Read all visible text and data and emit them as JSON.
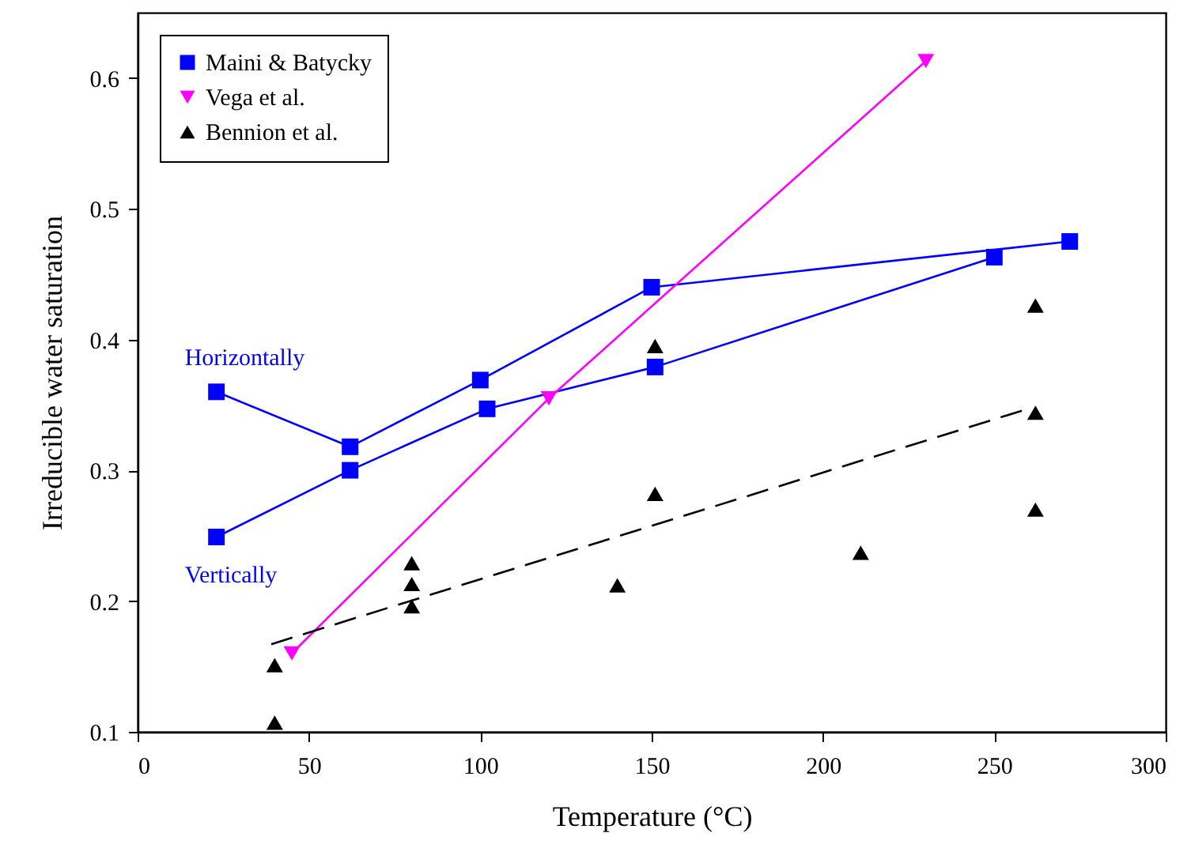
{
  "chart_data": {
    "type": "line",
    "xlabel": "Temperature (°C)",
    "ylabel": "Irreducible water saturation",
    "xlim": [
      0,
      300
    ],
    "xticks": [
      0,
      50,
      100,
      150,
      200,
      250,
      300
    ],
    "ylim": [
      0.1,
      0.65
    ],
    "yticks": [
      0.1,
      0.2,
      0.3,
      0.4,
      0.5,
      0.6
    ],
    "grid": false,
    "legend": "top left",
    "line_style": "solid",
    "series": [
      {
        "name": "Maini & Batycky",
        "color": "#0000ff",
        "marker": "square",
        "x": [
          23,
          62,
          100,
          150,
          272
        ],
        "values": [
          0.36,
          0.318,
          0.369,
          0.44,
          0.475
        ]
      },
      {
        "color": "#0000ff",
        "marker": "square",
        "x": [
          23,
          62,
          102,
          151,
          250
        ],
        "values": [
          0.249,
          0.3,
          0.347,
          0.379,
          0.463
        ]
      },
      {
        "name": "Vega et al.",
        "color": "#ff00ff",
        "marker": "triangle-down",
        "x": [
          45,
          120,
          230
        ],
        "values": [
          0.16,
          0.355,
          0.613
        ]
      },
      {
        "name": "Bennion et al.",
        "color": "#000000",
        "type": "scatter",
        "marker": "triangle",
        "x": [
          40,
          40,
          80,
          80,
          80,
          140,
          151,
          151,
          211,
          262,
          262,
          262
        ],
        "values": [
          0.107,
          0.151,
          0.196,
          0.213,
          0.229,
          0.212,
          0.282,
          0.395,
          0.237,
          0.27,
          0.344,
          0.426
        ]
      },
      {
        "color": "#000000",
        "type": "line",
        "marker": "none",
        "line_style": "dashed",
        "x": [
          39,
          261
        ],
        "values": [
          0.167,
          0.348
        ]
      }
    ],
    "annotations": [
      "Horizontally",
      "Vertically"
    ]
  }
}
